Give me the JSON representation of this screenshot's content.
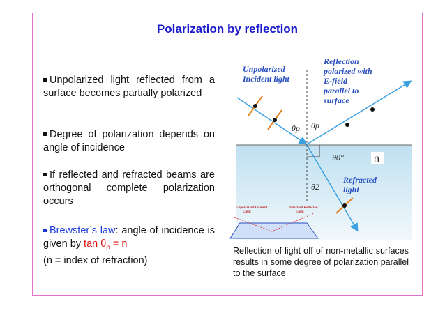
{
  "title": "Polarization by reflection",
  "bullets": [
    {
      "text": "Unpolarized light reflected from a surface becomes partially polarized"
    },
    {
      "text": "Degree of polarization depends on angle of incidence"
    },
    {
      "text": "If reflected and refracted beams are orthogonal complete polarization occurs"
    },
    {
      "law": "Brewster’s law",
      "text": ": angle of incidence is given by ",
      "formula": "tan θ",
      "sub": "p",
      "formula_end": " = n",
      "note": "(n = index of refraction)"
    }
  ],
  "diagram": {
    "incident": [
      "Unpolarized",
      "Incident light"
    ],
    "reflection": [
      "Reflection",
      "polarized with",
      "E-field",
      "parallel to",
      "surface"
    ],
    "refracted": [
      "Refracted",
      "light"
    ],
    "theta_p": "θp",
    "right_angle": "90°",
    "n": "n",
    "theta_2": "θ2",
    "inset_incident": [
      "Unpolarized Incident",
      "Light"
    ],
    "inset_reflected": [
      "Polarized Reflected",
      "Light"
    ]
  },
  "caption": "Reflection of light off of non-metallic surfaces results in some degree of polarization parallel to the surface"
}
